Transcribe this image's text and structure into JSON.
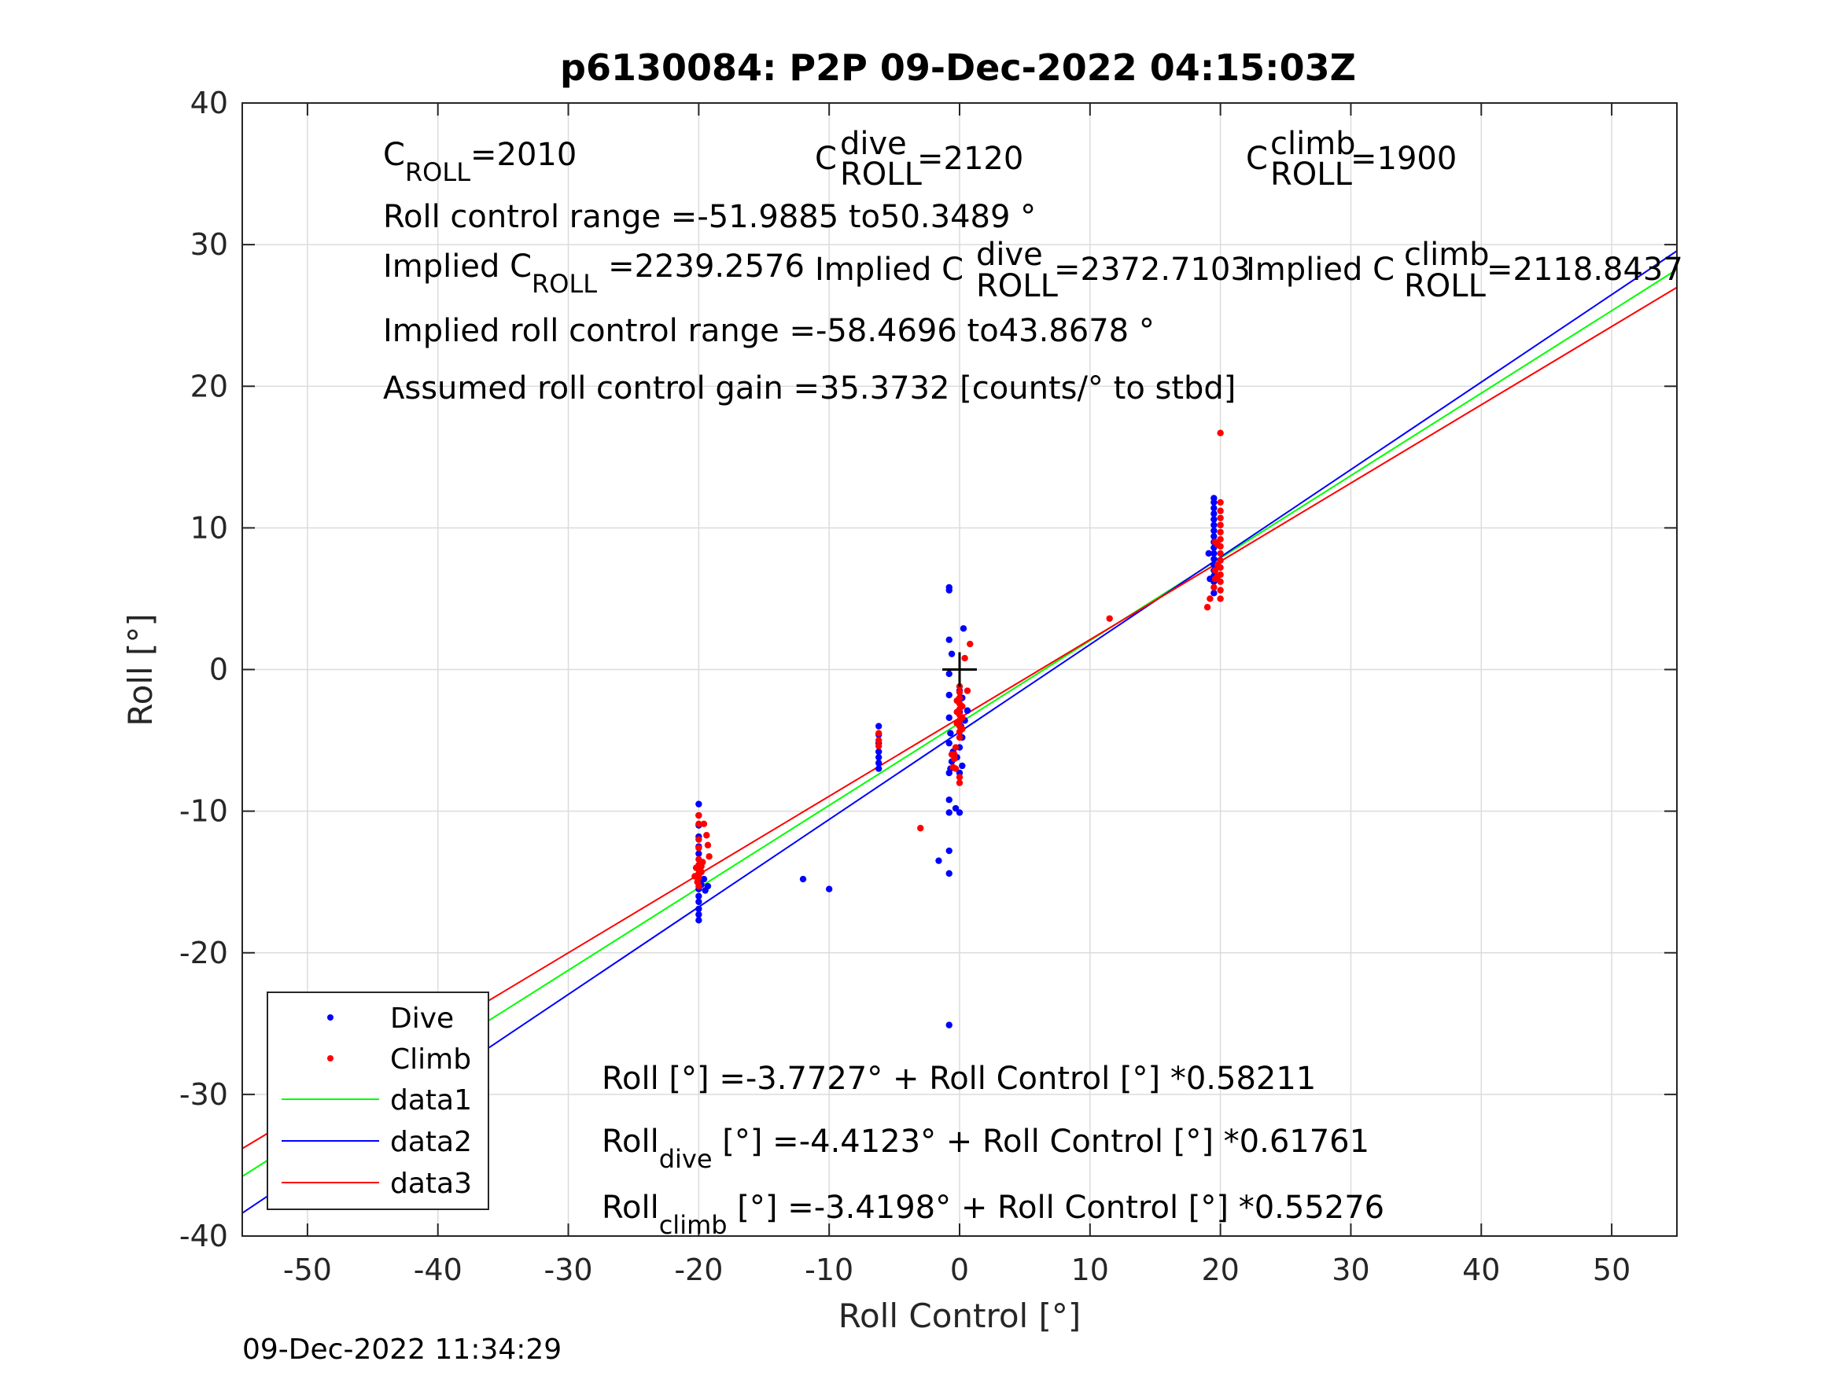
{
  "chart_data": {
    "type": "scatter",
    "title": "p6130084: P2P 09-Dec-2022 04:15:03Z",
    "xlabel": "Roll Control [°]",
    "ylabel": "Roll [°]",
    "xlim": [
      -55,
      55
    ],
    "ylim": [
      -40,
      40
    ],
    "xticks": [
      "-50",
      "-40",
      "-30",
      "-20",
      "-10",
      "0",
      "10",
      "20",
      "30",
      "40",
      "50"
    ],
    "yticks": [
      "40",
      "30",
      "20",
      "10",
      "0",
      "-10",
      "-20",
      "-30",
      "-40"
    ],
    "grid": true,
    "legend_position": "bottom-left",
    "footer": "09-Dec-2022 11:34:29",
    "annotations": {
      "c_roll": {
        "base": "C",
        "sub": "ROLL",
        "value": "=2010"
      },
      "c_roll_dive": {
        "base": "C",
        "sup": "dive",
        "sub": "ROLL",
        "value": "=2120"
      },
      "c_roll_climb": {
        "base": "C",
        "sup": "climb",
        "sub": "ROLL",
        "value": "=1900"
      },
      "roll_range": "Roll control range =-51.9885 to50.3489 °",
      "implied_c_roll": {
        "prefix": "Implied C",
        "sub": "ROLL",
        "value": "=2239.2576"
      },
      "implied_c_roll_dive": {
        "prefix": "Implied C",
        "sup": "dive",
        "sub": "ROLL",
        "value": "=2372.7103"
      },
      "implied_c_roll_climb": {
        "prefix": "Implied C",
        "sup": "climb",
        "sub": "ROLL",
        "value": "=2118.8437"
      },
      "implied_range": "Implied roll control range =-58.4696 to43.8678 °",
      "gain": "Assumed roll control gain =35.3732 [counts/° to stbd]",
      "eq_all": "Roll [°] =-3.7727° + Roll Control [°] *0.58211",
      "eq_dive": {
        "base": "Roll",
        "sub": "dive",
        "rest": " [°] =-4.4123° + Roll Control [°] *0.61761"
      },
      "eq_climb": {
        "base": "Roll",
        "sub": "climb",
        "rest": " [°] =-3.4198° + Roll Control [°] *0.55276"
      }
    },
    "series": [
      {
        "name": "Dive",
        "kind": "points",
        "color": "#0000ff",
        "points": [
          [
            -20,
            -9.5
          ],
          [
            -20,
            -10.3
          ],
          [
            -20,
            -11.0
          ],
          [
            -20,
            -11.8
          ],
          [
            -20,
            -12.5
          ],
          [
            -20,
            -13.0
          ],
          [
            -20,
            -14.5
          ],
          [
            -20,
            -15.0
          ],
          [
            -20,
            -15.5
          ],
          [
            -20,
            -16.0
          ],
          [
            -20,
            -16.4
          ],
          [
            -20,
            -16.9
          ],
          [
            -20,
            -17.3
          ],
          [
            -20,
            -17.7
          ],
          [
            -19.8,
            -15.2
          ],
          [
            -19.5,
            -15.6
          ],
          [
            -19.3,
            -15.3
          ],
          [
            -19.6,
            -14.8
          ],
          [
            -12,
            -14.8
          ],
          [
            -10,
            -15.5
          ],
          [
            -6.2,
            -4.0
          ],
          [
            -6.2,
            -4.6
          ],
          [
            -6.2,
            -5.2
          ],
          [
            -6.2,
            -5.8
          ],
          [
            -6.2,
            -6.2
          ],
          [
            -6.2,
            -6.6
          ],
          [
            -6.2,
            -7.0
          ],
          [
            -0.8,
            5.8
          ],
          [
            -0.8,
            5.6
          ],
          [
            -0.8,
            2.1
          ],
          [
            -0.6,
            1.1
          ],
          [
            -0.8,
            -0.3
          ],
          [
            -0.8,
            -1.8
          ],
          [
            -0.8,
            -3.4
          ],
          [
            -0.7,
            -4.5
          ],
          [
            -0.8,
            -5.2
          ],
          [
            -0.5,
            -5.8
          ],
          [
            -0.6,
            -6.5
          ],
          [
            -0.7,
            -7.0
          ],
          [
            -0.8,
            -7.3
          ],
          [
            -0.8,
            -9.2
          ],
          [
            -0.8,
            -10.1
          ],
          [
            -0.3,
            -9.8
          ],
          [
            0.0,
            -10.1
          ],
          [
            -0.8,
            -12.8
          ],
          [
            -1.6,
            -13.5
          ],
          [
            -0.8,
            -14.4
          ],
          [
            -0.8,
            -25.1
          ],
          [
            0.3,
            2.9
          ],
          [
            0.0,
            -1.5
          ],
          [
            0.2,
            -2.0
          ],
          [
            0.0,
            -3.0
          ],
          [
            0.1,
            -4.0
          ],
          [
            0.2,
            -4.8
          ],
          [
            0.0,
            -5.5
          ],
          [
            -0.2,
            -6.2
          ],
          [
            0.2,
            -6.8
          ],
          [
            0.0,
            -7.3
          ],
          [
            0.4,
            -3.6
          ],
          [
            0.6,
            -2.9
          ],
          [
            19.5,
            12.1
          ],
          [
            19.5,
            11.8
          ],
          [
            19.5,
            11.4
          ],
          [
            19.5,
            11.0
          ],
          [
            19.5,
            10.6
          ],
          [
            19.5,
            10.2
          ],
          [
            19.5,
            9.8
          ],
          [
            19.5,
            9.4
          ],
          [
            19.5,
            9.0
          ],
          [
            19.5,
            8.6
          ],
          [
            19.5,
            8.2
          ],
          [
            19.5,
            7.8
          ],
          [
            19.5,
            7.4
          ],
          [
            19.5,
            7.0
          ],
          [
            19.5,
            6.6
          ],
          [
            19.5,
            6.2
          ],
          [
            19.5,
            5.4
          ],
          [
            19.1,
            8.2
          ],
          [
            19.2,
            6.4
          ]
        ]
      },
      {
        "name": "Climb",
        "kind": "points",
        "color": "#ff0000",
        "points": [
          [
            -20,
            -10.3
          ],
          [
            -20,
            -10.9
          ],
          [
            -19.6,
            -10.9
          ],
          [
            -19.4,
            -11.7
          ],
          [
            -19.3,
            -12.4
          ],
          [
            -19.2,
            -13.2
          ],
          [
            -20,
            -12.0
          ],
          [
            -20,
            -12.6
          ],
          [
            -20,
            -13.4
          ],
          [
            -20,
            -13.8
          ],
          [
            -20,
            -14.1
          ],
          [
            -20,
            -14.4
          ],
          [
            -20,
            -14.7
          ],
          [
            -20.2,
            -14.0
          ],
          [
            -20.3,
            -14.6
          ],
          [
            -19.8,
            -14.3
          ],
          [
            -19.7,
            -13.6
          ],
          [
            -20.1,
            -15.0
          ],
          [
            -20.0,
            -15.3
          ],
          [
            -19.8,
            -13.9
          ],
          [
            -6.2,
            -4.5
          ],
          [
            -6.2,
            -5.0
          ],
          [
            -6.2,
            -5.4
          ],
          [
            -3,
            -11.2
          ],
          [
            11.5,
            3.6
          ],
          [
            0.0,
            -1.2
          ],
          [
            0.0,
            -1.6
          ],
          [
            0.0,
            -2.0
          ],
          [
            0.0,
            -2.4
          ],
          [
            0.0,
            -2.8
          ],
          [
            0.0,
            -3.2
          ],
          [
            0.0,
            -3.6
          ],
          [
            0.0,
            -4.0
          ],
          [
            0.0,
            -4.4
          ],
          [
            0.0,
            -4.8
          ],
          [
            -0.2,
            -2.2
          ],
          [
            -0.2,
            -3.0
          ],
          [
            -0.2,
            -3.8
          ],
          [
            0.2,
            -2.6
          ],
          [
            0.2,
            -3.4
          ],
          [
            0.2,
            -4.2
          ],
          [
            -0.3,
            -5.5
          ],
          [
            -0.4,
            -6.0
          ],
          [
            -0.4,
            -6.3
          ],
          [
            -0.6,
            -6.0
          ],
          [
            -0.5,
            -6.9
          ],
          [
            0.0,
            -7.6
          ],
          [
            0.0,
            -8.0
          ],
          [
            -0.3,
            -7.0
          ],
          [
            0.4,
            0.8
          ],
          [
            0.8,
            1.8
          ],
          [
            0.6,
            -1.5
          ],
          [
            20.0,
            16.7
          ],
          [
            20.0,
            11.8
          ],
          [
            20.0,
            11.2
          ],
          [
            20.0,
            10.7
          ],
          [
            20.0,
            10.2
          ],
          [
            20.0,
            9.7
          ],
          [
            20.0,
            9.2
          ],
          [
            20.0,
            8.7
          ],
          [
            20.0,
            8.2
          ],
          [
            20.0,
            7.7
          ],
          [
            20.0,
            7.2
          ],
          [
            20.0,
            6.7
          ],
          [
            20.0,
            6.2
          ],
          [
            20.0,
            5.6
          ],
          [
            20.0,
            5.0
          ],
          [
            19.8,
            7.4
          ],
          [
            19.8,
            6.6
          ],
          [
            19.6,
            7.0
          ],
          [
            19.6,
            6.4
          ],
          [
            19.8,
            8.8
          ],
          [
            19.6,
            9.0
          ],
          [
            19.2,
            5.0
          ],
          [
            19.0,
            4.4
          ],
          [
            19.5,
            5.8
          ]
        ]
      },
      {
        "name": "data1",
        "kind": "line",
        "color": "#00ff00",
        "intercept": -3.7727,
        "slope": 0.58211
      },
      {
        "name": "data2",
        "kind": "line",
        "color": "#0000ff",
        "intercept": -4.4123,
        "slope": 0.61761
      },
      {
        "name": "data3",
        "kind": "line",
        "color": "#ff0000",
        "intercept": -3.4198,
        "slope": 0.55276
      }
    ],
    "origin_marker": [
      0,
      0
    ]
  }
}
